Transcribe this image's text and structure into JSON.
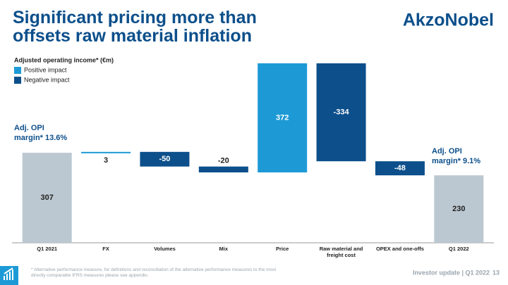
{
  "chart_data": {
    "type": "waterfall",
    "title": "Significant pricing more than offsets raw material inflation",
    "logo": "AkzoNobel",
    "subtitle": "Adjusted operating income* (€m)",
    "categories": [
      "Q1 2021",
      "FX",
      "Volumes",
      "Mix",
      "Price",
      "Raw material and freight cost",
      "OPEX and one-offs",
      "Q1 2022"
    ],
    "values": [
      307,
      3,
      -50,
      -20,
      372,
      -334,
      -48,
      230
    ],
    "legend": [
      {
        "name": "Positive impact",
        "color": "#1d9ad6"
      },
      {
        "name": "Negative impact",
        "color": "#0c4f8b"
      }
    ],
    "total_color": "#bcc8d1",
    "annotations": [
      "Adj. OPI margin* 13.6%",
      "Adj. OPI margin* 9.1%"
    ],
    "footnote": "* Alternative performance measure, for definitions and reconciliation of the alternative performance measures to the most directly comparable IFRS measures please see appendix.",
    "footer": "Investor update | Q1 2022",
    "page_number": "13"
  }
}
